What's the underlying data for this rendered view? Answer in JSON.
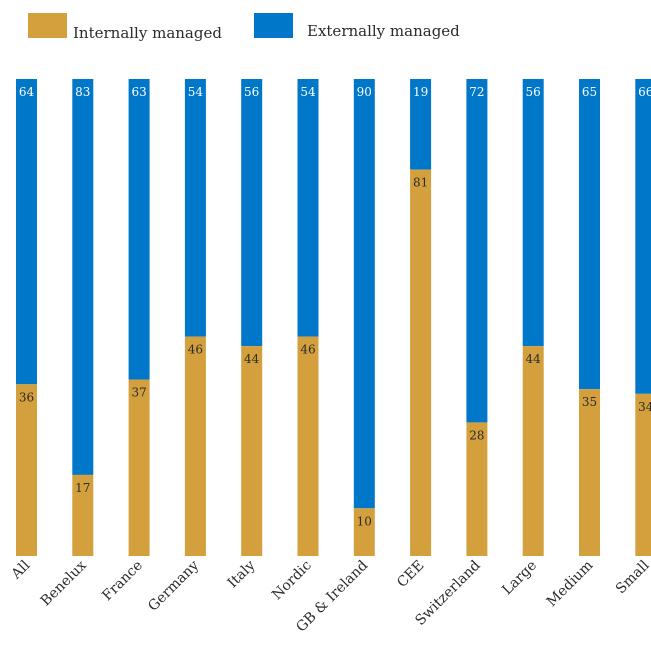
{
  "chart_data": {
    "type": "bar",
    "stacked": true,
    "categories": [
      "All",
      "Benelux",
      "France",
      "Germany",
      "Italy",
      "Nordic",
      "GB & Ireland",
      "CEE",
      "Switzerland",
      "Large",
      "Medium",
      "Small"
    ],
    "series": [
      {
        "name": "Internally managed",
        "color": "#D4A03E",
        "values": [
          36,
          17,
          37,
          46,
          44,
          46,
          10,
          81,
          28,
          44,
          35,
          34
        ]
      },
      {
        "name": "Externally managed",
        "color": "#0077C8",
        "values": [
          64,
          83,
          63,
          54,
          56,
          54,
          90,
          19,
          72,
          56,
          65,
          66
        ]
      }
    ],
    "ylim": [
      0,
      100
    ],
    "grid": false,
    "legend_position": "top-left"
  }
}
